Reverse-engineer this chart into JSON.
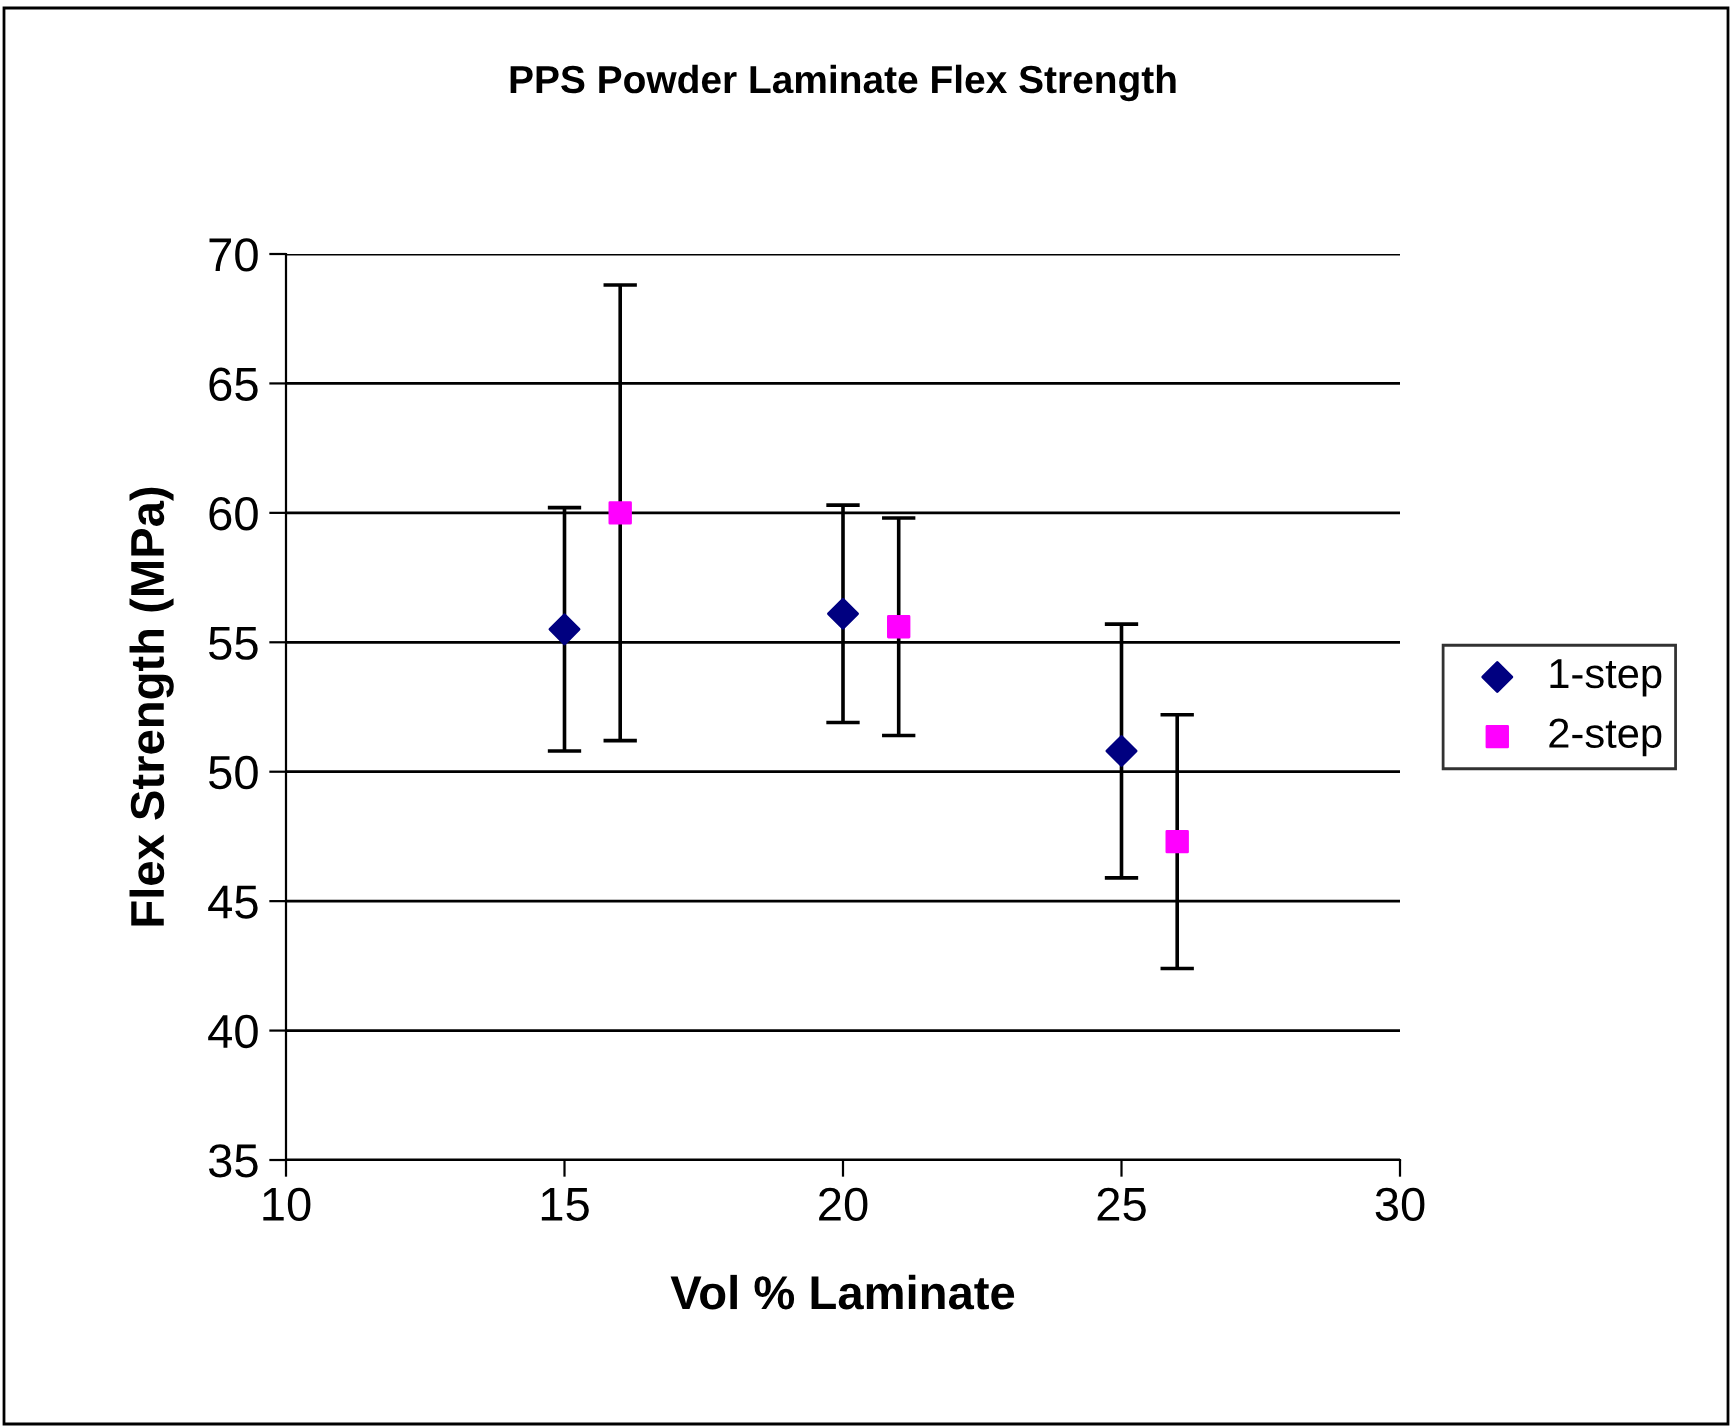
{
  "chart_data": {
    "type": "scatter",
    "title": "PPS Powder Laminate Flex Strength",
    "xlabel": "Vol % Laminate",
    "ylabel": "Flex Strength (MPa)",
    "series": [
      {
        "name": "1-step",
        "color": "#000080",
        "marker": "diamond",
        "x": [
          15,
          20,
          25
        ],
        "values": [
          55.5,
          56.1,
          50.8
        ],
        "errors": [
          4.7,
          4.2,
          4.9
        ]
      },
      {
        "name": "2-step",
        "color": "#ff00ff",
        "marker": "square",
        "x": [
          16,
          21,
          26
        ],
        "values": [
          60.0,
          55.6,
          47.3
        ],
        "errors": [
          8.8,
          4.2,
          4.9
        ]
      }
    ],
    "xlim": [
      10,
      30
    ],
    "xticks": [
      10,
      15,
      20,
      25,
      30
    ],
    "ylim": [
      35,
      70
    ],
    "yticks": [
      35,
      40,
      45,
      50,
      55,
      60,
      65,
      70
    ],
    "grid": "y",
    "legend": "right"
  }
}
